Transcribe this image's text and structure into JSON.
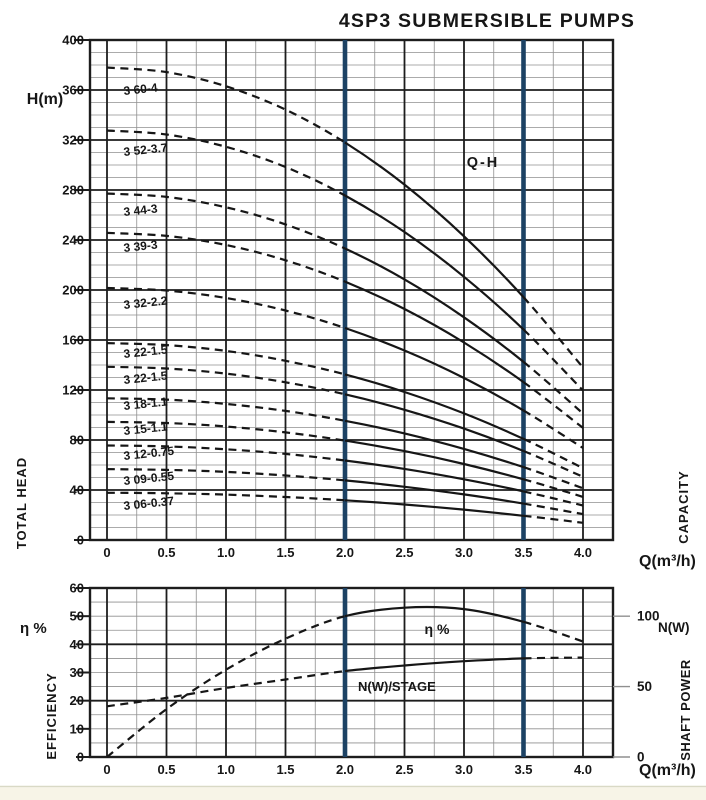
{
  "title": "4SP3  SUBMERSIBLE  PUMPS",
  "colors": {
    "ink": "#161616",
    "grid_major": "#1d1d1d",
    "grid_minor": "#8f8f8f",
    "accent_blue": "#1c4264",
    "footer_bg": "#f7f4e7",
    "footer_line": "#d9d9c6"
  },
  "chart_data": [
    {
      "type": "line",
      "name": "Q-H head-capacity curves",
      "region_label": "Q-H",
      "xlabel": "Q(m³/h)",
      "ylabel": "H(m)",
      "left_axis_title": "TOTAL HEAD",
      "right_axis_title": "CAPACITY",
      "xlim": [
        0,
        4.0
      ],
      "ylim": [
        0,
        400
      ],
      "x_tick_labels": [
        "0",
        "0.5",
        "1.0",
        "1.5",
        "2.0",
        "2.5",
        "3.0",
        "3.5",
        "4.0"
      ],
      "y_tick_labels": [
        "400",
        "360",
        "320",
        "280",
        "240",
        "200",
        "160",
        "120",
        "80",
        "40",
        "0"
      ],
      "minor_grid": {
        "x_step": 0.25,
        "y_step": 10
      },
      "recommended_range_x": [
        2.0,
        3.5
      ],
      "line_style_note": "curves dashed outside Q=2.0-3.5 band, solid inside; blue vertical lines mark the band",
      "x": [
        0,
        0.5,
        1.0,
        1.5,
        2.0,
        2.5,
        3.0,
        3.5,
        4.0
      ],
      "series": [
        {
          "label": "3 60-4",
          "values": [
            378.0,
            374.3,
            363.0,
            344.3,
            318.0,
            284.3,
            243.0,
            194.3,
            138.0
          ]
        },
        {
          "label": "3 52-3.7",
          "values": [
            327.6,
            324.4,
            314.6,
            298.4,
            275.6,
            246.4,
            210.6,
            168.4,
            119.6
          ]
        },
        {
          "label": "3 44-3",
          "values": [
            277.2,
            274.5,
            266.2,
            252.5,
            233.2,
            208.5,
            178.2,
            142.5,
            101.2
          ]
        },
        {
          "label": "3 39-3",
          "values": [
            245.7,
            243.3,
            236.0,
            223.8,
            206.7,
            184.8,
            158.0,
            126.3,
            89.7
          ]
        },
        {
          "label": "3 32-2.2",
          "values": [
            201.6,
            199.6,
            193.6,
            183.6,
            169.6,
            151.6,
            129.6,
            103.6,
            73.6
          ]
        },
        {
          "label": "3 22-1.5",
          "values": [
            157.5,
            155.9,
            151.3,
            143.4,
            132.5,
            118.4,
            101.3,
            80.9,
            57.5
          ]
        },
        {
          "label": "3 22-1.5",
          "values": [
            138.6,
            137.2,
            133.1,
            126.2,
            116.6,
            104.2,
            89.1,
            71.2,
            50.6
          ]
        },
        {
          "label": "3 18-1.1",
          "values": [
            113.4,
            112.3,
            108.9,
            103.3,
            95.4,
            85.3,
            72.9,
            58.3,
            41.4
          ]
        },
        {
          "label": "3 15-1.1",
          "values": [
            94.5,
            93.6,
            90.8,
            86.1,
            79.5,
            71.1,
            60.8,
            48.6,
            34.5
          ]
        },
        {
          "label": "3 12-0.75",
          "values": [
            75.6,
            74.9,
            72.6,
            68.9,
            63.6,
            56.9,
            48.6,
            38.9,
            27.6
          ]
        },
        {
          "label": "3 09-0.55",
          "values": [
            56.7,
            56.1,
            54.5,
            51.6,
            47.7,
            42.6,
            36.5,
            29.1,
            20.7
          ]
        },
        {
          "label": "3 06-0.37",
          "values": [
            37.8,
            37.4,
            36.3,
            34.4,
            31.8,
            28.4,
            24.3,
            19.4,
            13.8
          ]
        }
      ]
    },
    {
      "type": "line",
      "name": "efficiency and shaft power per stage curves",
      "xlabel": "Q(m³/h)",
      "left_axis_label": "η %",
      "left_axis_title": "EFFICIENCY",
      "right_axis_label": "N(W)",
      "right_axis_title": "SHAFT POWER",
      "xlim": [
        0,
        4.0
      ],
      "ylim_left": [
        0,
        60
      ],
      "x_tick_labels": [
        "0",
        "0.5",
        "1.0",
        "1.5",
        "2.0",
        "2.5",
        "3.0",
        "3.5",
        "4.0"
      ],
      "left_tick_labels": [
        "60",
        "50",
        "40",
        "30",
        "20",
        "10",
        "0"
      ],
      "right_tick_labels": [
        "100",
        "50",
        "0"
      ],
      "right_axis_scale_note": "right N(W) axis = 2 × left axis units (100 W aligns with 50 on left)",
      "minor_grid": {
        "x_step": 0.25,
        "y_step": 5
      },
      "recommended_range_x": [
        2.0,
        3.5
      ],
      "x": [
        0,
        0.5,
        1.0,
        1.5,
        2.0,
        2.5,
        3.0,
        3.5,
        4.0
      ],
      "series": [
        {
          "label": "η %",
          "axis": "left",
          "values": [
            0,
            17,
            31,
            42,
            50,
            53,
            52.5,
            48,
            41
          ]
        },
        {
          "label": "N(W)/STAGE",
          "axis": "left",
          "values": [
            18,
            21,
            24.5,
            27.5,
            30.5,
            32.5,
            34,
            35,
            35.3
          ]
        }
      ]
    }
  ]
}
